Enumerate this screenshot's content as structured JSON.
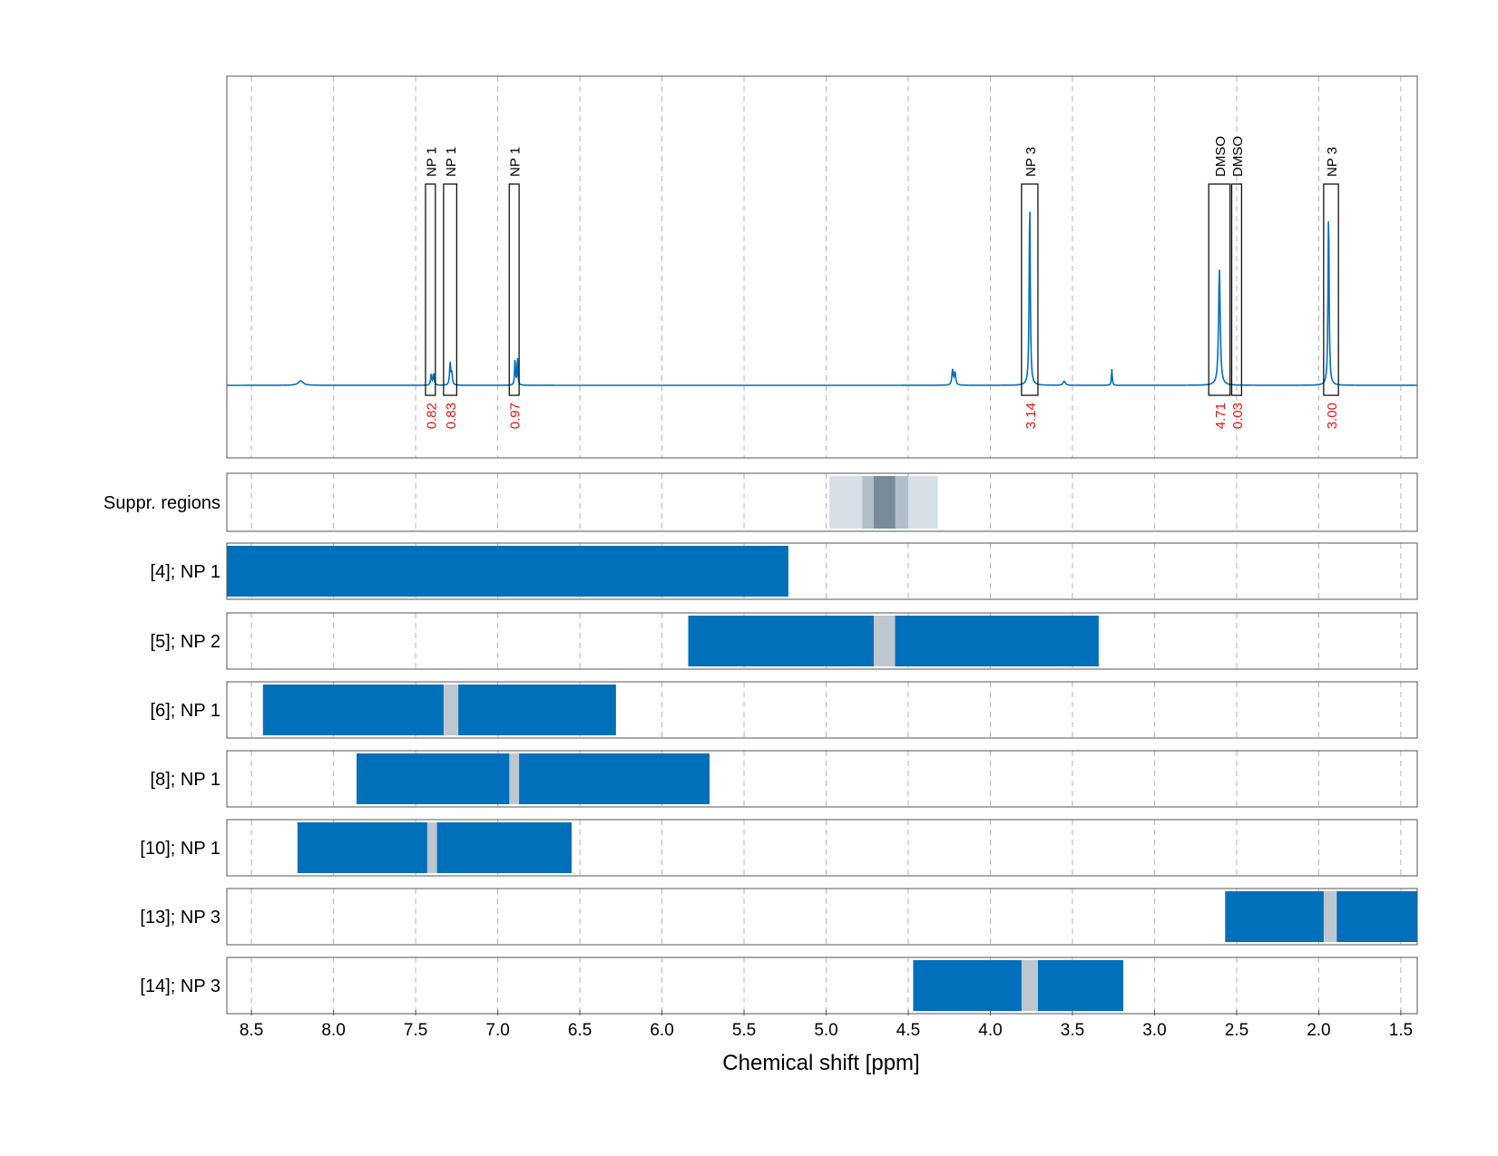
{
  "chart_data": {
    "type": "line",
    "xlabel": "Chemical shift [ppm]",
    "xlim": [
      8.65,
      1.4
    ],
    "x_reversed": true,
    "x_ticks": [
      8.5,
      8.0,
      7.5,
      7.0,
      6.5,
      6.0,
      5.5,
      5.0,
      4.5,
      4.0,
      3.5,
      3.0,
      2.5,
      2.0,
      1.5
    ],
    "x_tick_labels": [
      "8.5",
      "8.0",
      "7.5",
      "7.0",
      "6.5",
      "6.0",
      "5.5",
      "5.0",
      "4.5",
      "4.0",
      "3.5",
      "3.0",
      "2.5",
      "2.0",
      "1.5"
    ],
    "grid": "vertical dashed",
    "colors": {
      "spectrum": "#0070bb",
      "bar": "#0070bb",
      "gap": "#bcc7d0",
      "integral": "#ee1111",
      "suppr_light": "#d7dfe6",
      "suppr_mid": "#b1bfca",
      "suppr_dark": "#788b9a"
    },
    "spectrum": {
      "baseline": 0,
      "peaks": [
        {
          "ppm": 8.2,
          "height": 0.022,
          "width": 0.018
        },
        {
          "ppm": 7.405,
          "height": 0.055,
          "width": 0.004
        },
        {
          "ppm": 7.39,
          "height": 0.055,
          "width": 0.004
        },
        {
          "ppm": 7.29,
          "height": 0.11,
          "width": 0.004
        },
        {
          "ppm": 7.28,
          "height": 0.06,
          "width": 0.004
        },
        {
          "ppm": 6.895,
          "height": 0.135,
          "width": 0.003
        },
        {
          "ppm": 6.88,
          "height": 0.135,
          "width": 0.003
        },
        {
          "ppm": 4.23,
          "height": 0.075,
          "width": 0.005
        },
        {
          "ppm": 4.215,
          "height": 0.06,
          "width": 0.005
        },
        {
          "ppm": 3.76,
          "height": 0.9,
          "width": 0.004
        },
        {
          "ppm": 3.55,
          "height": 0.02,
          "width": 0.008
        },
        {
          "ppm": 3.26,
          "height": 0.08,
          "width": 0.003
        },
        {
          "ppm": 2.605,
          "height": 0.57,
          "width": 0.006
        },
        {
          "ppm": 1.94,
          "height": 0.85,
          "width": 0.004
        }
      ]
    },
    "annotations": [
      {
        "label": "NP 1",
        "integral": "0.82",
        "start": 7.44,
        "end": 7.38
      },
      {
        "label": "NP 1",
        "integral": "0.83",
        "start": 7.33,
        "end": 7.25
      },
      {
        "label": "NP 1",
        "integral": "0.97",
        "start": 6.93,
        "end": 6.87
      },
      {
        "label": "NP 3",
        "integral": "3.14",
        "start": 3.81,
        "end": 3.71
      },
      {
        "label": "DMSO",
        "integral": "4.71",
        "start": 2.67,
        "end": 2.54
      },
      {
        "label": "DMSO",
        "integral": "0.03",
        "start": 2.53,
        "end": 2.47
      },
      {
        "label": "NP 3",
        "integral": "3.00",
        "start": 1.97,
        "end": 1.88
      }
    ],
    "suppression": {
      "label": "Suppr. regions",
      "regions": [
        {
          "start": 4.98,
          "end": 4.32,
          "level": "light"
        },
        {
          "start": 4.78,
          "end": 4.5,
          "level": "mid"
        },
        {
          "start": 4.71,
          "end": 4.58,
          "level": "dark"
        }
      ]
    },
    "rows": [
      {
        "label": "[4]; NP 1",
        "segments": [
          [
            8.65,
            5.23
          ]
        ],
        "gaps": []
      },
      {
        "label": "[5]; NP 2",
        "segments": [
          [
            5.84,
            3.34
          ]
        ],
        "gaps": [
          [
            4.71,
            4.58
          ]
        ]
      },
      {
        "label": "[6]; NP 1",
        "segments": [
          [
            8.43,
            6.28
          ]
        ],
        "gaps": [
          [
            7.33,
            7.24
          ]
        ]
      },
      {
        "label": "[8]; NP 1",
        "segments": [
          [
            7.86,
            5.71
          ]
        ],
        "gaps": [
          [
            6.93,
            6.87
          ]
        ]
      },
      {
        "label": "[10]; NP 1",
        "segments": [
          [
            8.22,
            6.55
          ]
        ],
        "gaps": [
          [
            7.43,
            7.37
          ]
        ]
      },
      {
        "label": "[13]; NP 3",
        "segments": [
          [
            2.57,
            1.4
          ]
        ],
        "gaps": [
          [
            1.97,
            1.89
          ]
        ]
      },
      {
        "label": "[14]; NP 3",
        "segments": [
          [
            4.47,
            3.19
          ]
        ],
        "gaps": [
          [
            3.81,
            3.71
          ]
        ]
      }
    ]
  }
}
